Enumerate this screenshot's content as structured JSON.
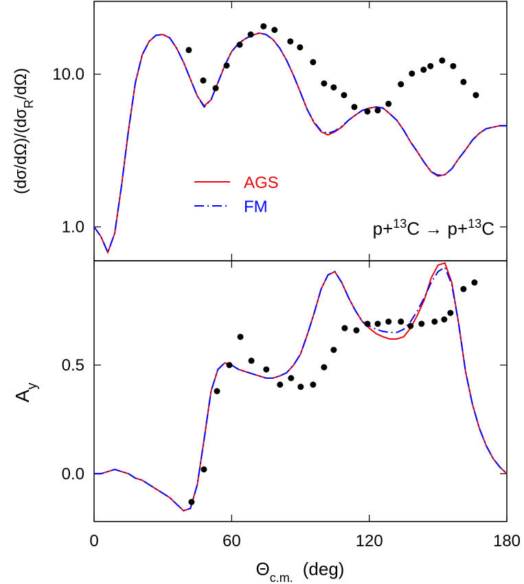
{
  "chart_data": [
    {
      "type": "line",
      "ylabel": [
        "(dσ/dΩ)/(dσ",
        "R",
        "/dΩ)"
      ],
      "yscale": "log",
      "ylim": [
        0.6,
        30
      ],
      "yticks": [
        {
          "value": 1,
          "label": "1.0"
        },
        {
          "value": 10,
          "label": "10.0"
        }
      ],
      "xlim": [
        0,
        180
      ],
      "x": [
        0,
        3,
        6,
        9,
        12,
        15,
        18,
        21,
        24,
        27,
        30,
        33,
        36,
        39,
        42,
        45,
        48,
        51,
        54,
        57,
        60,
        63,
        66,
        69,
        72,
        75,
        78,
        81,
        84,
        87,
        90,
        93,
        96,
        99,
        102,
        105,
        108,
        111,
        114,
        117,
        120,
        123,
        126,
        129,
        132,
        135,
        138,
        141,
        144,
        147,
        150,
        153,
        156,
        159,
        162,
        165,
        168,
        171,
        174,
        177,
        180
      ],
      "series": [
        {
          "name": "AGS",
          "color": "#e8000b",
          "dash": "solid",
          "values": [
            1.0,
            0.865,
            0.68,
            0.91,
            1.88,
            4.3,
            8.8,
            13.4,
            16.4,
            18.0,
            18.2,
            17.3,
            14.8,
            12.0,
            9.3,
            7.2,
            6.2,
            6.8,
            8.8,
            11.4,
            14.1,
            15.9,
            17.1,
            18.0,
            18.6,
            18.2,
            16.9,
            14.8,
            12.3,
            9.8,
            7.6,
            5.85,
            4.8,
            4.2,
            4.0,
            4.2,
            4.5,
            5.0,
            5.4,
            5.8,
            6.0,
            6.1,
            6.0,
            5.5,
            5.0,
            4.3,
            3.6,
            3.1,
            2.64,
            2.3,
            2.15,
            2.2,
            2.4,
            2.8,
            3.2,
            3.7,
            4.1,
            4.4,
            4.5,
            4.6,
            4.6
          ]
        },
        {
          "name": "FM",
          "color": "#0000ff",
          "dash": "dashdot",
          "values": [
            1.0,
            0.865,
            0.68,
            0.91,
            1.88,
            4.3,
            8.8,
            13.4,
            16.4,
            18.0,
            18.2,
            17.3,
            14.8,
            12.0,
            9.3,
            7.2,
            6.1,
            6.8,
            8.8,
            11.4,
            14.1,
            15.9,
            17.1,
            18.0,
            18.6,
            18.2,
            16.9,
            14.8,
            12.3,
            9.8,
            7.6,
            5.85,
            4.85,
            4.25,
            4.1,
            4.25,
            4.55,
            5.0,
            5.4,
            5.8,
            6.0,
            6.1,
            6.0,
            5.5,
            5.0,
            4.3,
            3.6,
            3.1,
            2.64,
            2.3,
            2.18,
            2.2,
            2.4,
            2.8,
            3.2,
            3.7,
            4.1,
            4.4,
            4.5,
            4.6,
            4.6
          ]
        }
      ],
      "points": {
        "color": "#000000",
        "x": [
          41.3,
          47.6,
          53.0,
          57.8,
          63.5,
          68.3,
          73.9,
          78.7,
          85.6,
          89.8,
          95.5,
          100.3,
          104.5,
          109.0,
          113.5,
          119.2,
          123.7,
          128.4,
          133.8,
          138.6,
          143.7,
          146.7,
          151.8,
          156.6,
          161.1,
          166.5
        ],
        "values": [
          14.4,
          9.1,
          8.1,
          11.4,
          15.6,
          18.2,
          20.6,
          19.5,
          16.4,
          15.0,
          12.0,
          8.7,
          8.2,
          7.3,
          6.1,
          5.7,
          5.8,
          6.4,
          8.6,
          10.1,
          10.7,
          11.3,
          12.3,
          11.3,
          8.9,
          7.3
        ]
      },
      "annotation": [
        "p+",
        "13",
        "C → p+",
        "13",
        "C"
      ]
    },
    {
      "type": "line",
      "ylabel": [
        "A",
        "y"
      ],
      "xlabel": [
        "Θ",
        "c.m.",
        "(deg)"
      ],
      "ylim": [
        -0.22,
        0.98
      ],
      "yticks": [
        {
          "value": 0,
          "label": "0.0"
        },
        0.5
      ],
      "xlim": [
        0,
        180
      ],
      "xticks": [
        0,
        60,
        120,
        180
      ],
      "x": [
        0,
        3,
        6,
        9,
        12,
        15,
        18,
        21,
        24,
        27,
        30,
        33,
        36,
        39,
        42,
        45,
        48,
        51,
        54,
        57,
        60,
        63,
        66,
        69,
        72,
        75,
        78,
        81,
        84,
        87,
        90,
        93,
        96,
        99,
        102,
        105,
        108,
        111,
        114,
        117,
        120,
        123,
        126,
        129,
        132,
        135,
        138,
        141,
        144,
        147,
        150,
        153,
        156,
        159,
        162,
        165,
        168,
        171,
        174,
        177,
        180
      ],
      "series": [
        {
          "color": "#e8000b",
          "dash": "solid",
          "values": [
            0.0,
            0.0,
            0.01,
            0.02,
            0.01,
            0.0,
            -0.02,
            -0.03,
            -0.05,
            -0.07,
            -0.09,
            -0.11,
            -0.14,
            -0.17,
            -0.16,
            -0.05,
            0.16,
            0.38,
            0.48,
            0.51,
            0.5,
            0.48,
            0.47,
            0.46,
            0.45,
            0.44,
            0.44,
            0.45,
            0.465,
            0.5,
            0.55,
            0.64,
            0.74,
            0.85,
            0.915,
            0.93,
            0.88,
            0.81,
            0.75,
            0.7,
            0.67,
            0.645,
            0.63,
            0.62,
            0.62,
            0.63,
            0.67,
            0.73,
            0.8,
            0.9,
            0.96,
            0.97,
            0.88,
            0.69,
            0.47,
            0.32,
            0.21,
            0.13,
            0.07,
            0.03,
            0.0
          ]
        },
        {
          "color": "#0000ff",
          "dash": "dashdot",
          "values": [
            0.0,
            0.0,
            0.01,
            0.02,
            0.01,
            0.0,
            -0.02,
            -0.03,
            -0.05,
            -0.07,
            -0.09,
            -0.11,
            -0.14,
            -0.17,
            -0.16,
            -0.05,
            0.16,
            0.38,
            0.48,
            0.51,
            0.5,
            0.48,
            0.47,
            0.46,
            0.45,
            0.44,
            0.44,
            0.45,
            0.465,
            0.5,
            0.55,
            0.64,
            0.74,
            0.85,
            0.915,
            0.93,
            0.88,
            0.81,
            0.75,
            0.7,
            0.68,
            0.665,
            0.655,
            0.65,
            0.65,
            0.665,
            0.7,
            0.75,
            0.81,
            0.88,
            0.93,
            0.95,
            0.87,
            0.69,
            0.47,
            0.32,
            0.21,
            0.13,
            0.07,
            0.03,
            0.0
          ]
        }
      ],
      "points": {
        "color": "#000000",
        "x": [
          42.5,
          47.9,
          53.6,
          59.0,
          63.8,
          68.6,
          75.1,
          81.1,
          85.9,
          90.1,
          95.5,
          100.3,
          104.5,
          109.3,
          114.4,
          119.2,
          123.7,
          128.4,
          133.8,
          138.0,
          142.8,
          148.5,
          152.7,
          155.4,
          161.1,
          165.9
        ],
        "values": [
          -0.13,
          0.02,
          0.38,
          0.5,
          0.63,
          0.52,
          0.48,
          0.41,
          0.44,
          0.4,
          0.41,
          0.49,
          0.57,
          0.67,
          0.66,
          0.69,
          0.69,
          0.7,
          0.7,
          0.68,
          0.69,
          0.7,
          0.71,
          0.74,
          0.85,
          0.88
        ]
      }
    }
  ]
}
